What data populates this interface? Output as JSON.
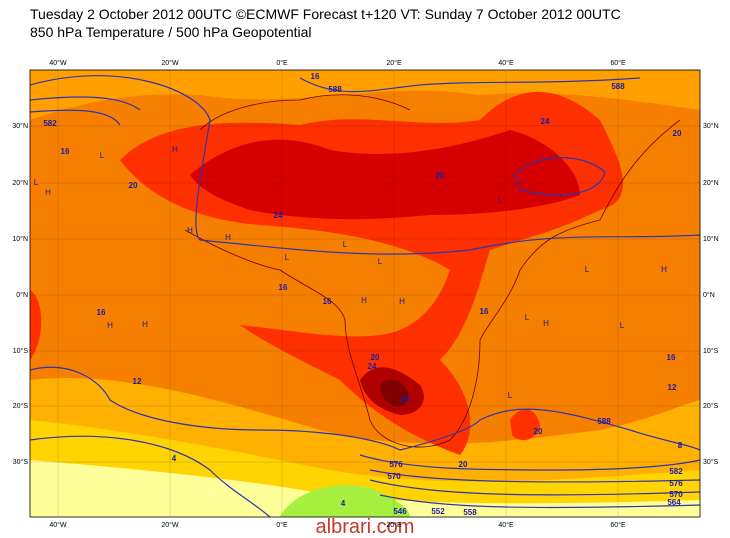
{
  "header": {
    "title": "Tuesday 2 October 2012 00UTC ©ECMWF Forecast t+120 VT: Sunday 7 October 2012 00UTC",
    "subtitle": "850 hPa Temperature / 500 hPa Geopotential"
  },
  "longitudes": [
    "40°W",
    "20°W",
    "0°E",
    "20°E",
    "40°E",
    "60°E"
  ],
  "latitudes": [
    "30°N",
    "20°N",
    "10°N",
    "0°N",
    "10°S",
    "20°S",
    "30°S"
  ],
  "contour_labels": [
    "16",
    "16",
    "20",
    "24",
    "20",
    "24",
    "20",
    "16",
    "16",
    "16",
    "16",
    "20",
    "24",
    "28",
    "12",
    "16",
    "12",
    "20",
    "20",
    "4",
    "4",
    "8",
    "588",
    "588",
    "582",
    "588",
    "582",
    "576",
    "570",
    "564",
    "552",
    "558",
    "546",
    "576",
    "570"
  ],
  "pressure_marks": [
    "L",
    "H",
    "H",
    "L",
    "H",
    "L",
    "H",
    "L",
    "L",
    "H",
    "H",
    "L",
    "L",
    "H",
    "L",
    "H",
    "L",
    "L",
    "H",
    "H"
  ],
  "watermark": "albrari.com"
}
